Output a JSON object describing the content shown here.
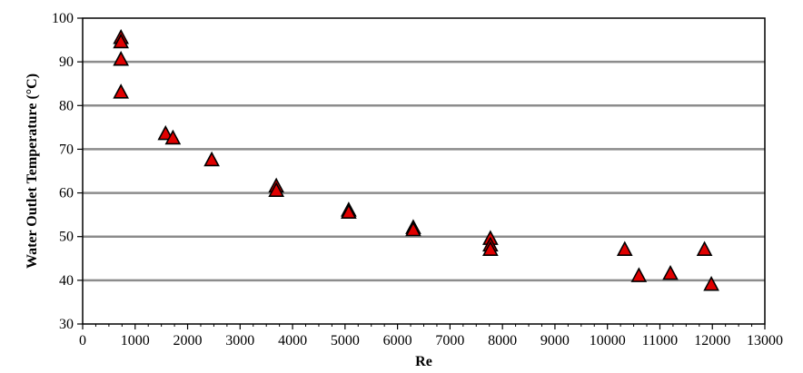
{
  "chart_data": {
    "type": "scatter",
    "title": "",
    "xlabel": "Re",
    "ylabel": "Water Outlet Temperature (°C)",
    "xlim": [
      0,
      13000
    ],
    "ylim": [
      30,
      100
    ],
    "xticks": [
      0,
      1000,
      2000,
      3000,
      4000,
      5000,
      6000,
      7000,
      8000,
      9000,
      10000,
      11000,
      12000,
      13000
    ],
    "yticks": [
      30,
      40,
      50,
      60,
      70,
      80,
      90,
      100
    ],
    "grid": "horizontal",
    "legend": "none",
    "marker": "triangle",
    "marker_color": "#e00000",
    "series": [
      {
        "x": [
          730,
          730,
          730,
          730,
          1580,
          1720,
          2460,
          3690,
          3690,
          5070,
          5070,
          6300,
          6300,
          7770,
          7770,
          7770,
          10330,
          10600,
          11200,
          11850,
          11980
        ],
        "y": [
          95.5,
          94.5,
          90.5,
          83,
          73.5,
          72.5,
          67.5,
          61.5,
          60.5,
          56,
          55.5,
          52,
          51.5,
          49.5,
          48,
          47,
          47,
          41,
          41.5,
          47,
          39
        ]
      }
    ]
  }
}
